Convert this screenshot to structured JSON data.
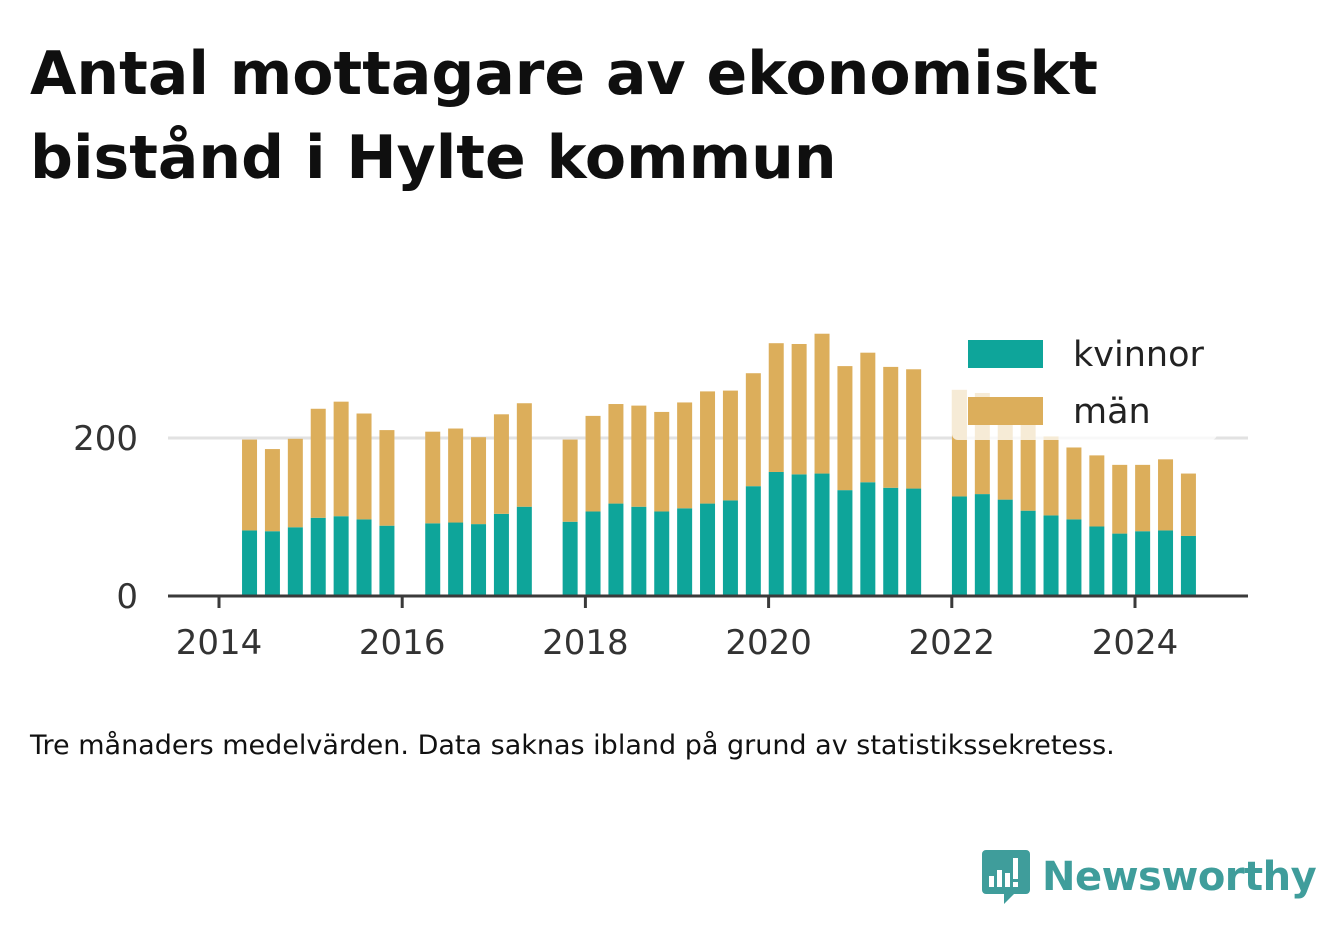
{
  "title": "Antal mottagare av ekonomiskt bistånd i Hylte kommun",
  "note": "Tre månaders medelvärden. Data saknas ibland på grund av statistikssekretess.",
  "brand": {
    "name": "Newsworthy",
    "icon": "newsworthy-logo-icon"
  },
  "colors": {
    "kvinnor": "#0ea59a",
    "man": "#dcae5b",
    "grid": "#e2e2e2",
    "axis": "#3a3a3a"
  },
  "chart_data": {
    "type": "bar",
    "stacked": true,
    "x_ticks": [
      "2014",
      "2016",
      "2018",
      "2020",
      "2022",
      "2024"
    ],
    "y_ticks": [
      "0",
      "200"
    ],
    "ylim": [
      0,
      330
    ],
    "grid": "horizontal",
    "legend_position": "top-right",
    "x": [
      "2014-05",
      "2014-08",
      "2014-11",
      "2015-02",
      "2015-05",
      "2015-08",
      "2015-11",
      "2016-02",
      "2016-05",
      "2016-08",
      "2016-11",
      "2017-02",
      "2017-05",
      "2017-08",
      "2017-11",
      "2018-02",
      "2018-05",
      "2018-08",
      "2018-11",
      "2019-02",
      "2019-05",
      "2019-08",
      "2019-11",
      "2020-02",
      "2020-05",
      "2020-08",
      "2020-11",
      "2021-02",
      "2021-05",
      "2021-08",
      "2021-11",
      "2022-02",
      "2022-05",
      "2022-08",
      "2022-11",
      "2023-02",
      "2023-05",
      "2023-08",
      "2023-11",
      "2024-02",
      "2024-05",
      "2024-08"
    ],
    "series": [
      {
        "name": "kvinnor",
        "values": [
          83,
          82,
          87,
          99,
          101,
          97,
          89,
          null,
          92,
          93,
          91,
          104,
          113,
          null,
          94,
          107,
          117,
          113,
          107,
          111,
          117,
          121,
          139,
          157,
          154,
          155,
          134,
          144,
          137,
          136,
          null,
          126,
          129,
          122,
          108,
          102,
          97,
          88,
          79,
          82,
          83,
          76
        ]
      },
      {
        "name": "män",
        "values": [
          115,
          104,
          112,
          138,
          145,
          134,
          121,
          null,
          116,
          119,
          110,
          126,
          131,
          null,
          104,
          121,
          126,
          128,
          126,
          134,
          142,
          139,
          143,
          163,
          165,
          177,
          157,
          164,
          153,
          151,
          null,
          135,
          128,
          108,
          116,
          100,
          91,
          90,
          87,
          84,
          90,
          79
        ]
      }
    ]
  }
}
